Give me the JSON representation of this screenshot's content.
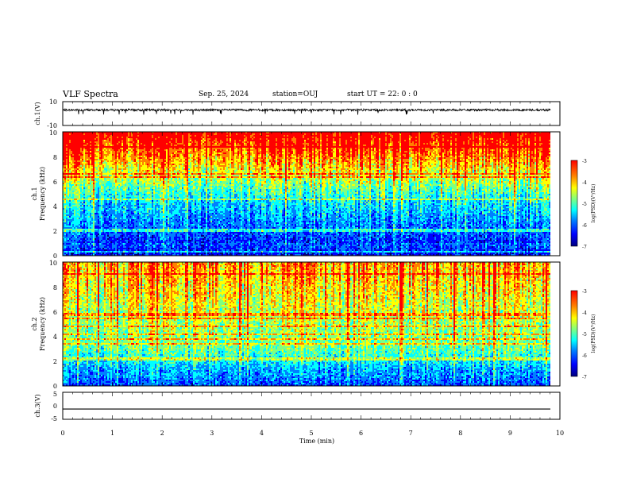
{
  "header": {
    "title": "VLF Spectra",
    "date": "Sep. 25, 2024",
    "station": "station=OUJ",
    "start": "start UT = 22: 0 : 0"
  },
  "colors": {
    "ch1_trace": "#000000",
    "ch3_trace": "#000000",
    "colormap": [
      "#00007f",
      "#0000ff",
      "#0080ff",
      "#00ffff",
      "#80ff80",
      "#ffff00",
      "#ff8000",
      "#ff0000"
    ]
  },
  "chart_data": [
    {
      "type": "line",
      "panel": "ch1-waveform",
      "ylabel": "ch.1(V)",
      "ylim": [
        -10,
        10
      ],
      "yticks": [
        "10",
        "-10"
      ],
      "xlim": [
        0,
        10
      ],
      "description_level": 3,
      "series": [
        {
          "values_summary": "noisy waveform around 3 V, spikes to about -1 V"
        }
      ]
    },
    {
      "type": "heatmap",
      "panel": "ch1-spectrogram",
      "ylabel": "ch.1\nFrequency (kHz)",
      "ylim": [
        0,
        10
      ],
      "yticks": [
        "0",
        "2",
        "4",
        "6",
        "8",
        "10"
      ],
      "xlim": [
        0,
        10
      ],
      "colorbar": {
        "label": "log(PSD)(V²/Hz)",
        "range": [
          -7,
          -3
        ],
        "ticks": [
          "-3",
          "-4",
          "-5",
          "-6",
          "-7"
        ]
      }
    },
    {
      "type": "heatmap",
      "panel": "ch2-spectrogram",
      "ylabel": "ch.2\nFrequency (kHz)",
      "ylim": [
        0,
        10
      ],
      "yticks": [
        "0",
        "2",
        "4",
        "6",
        "8",
        "10"
      ],
      "xlim": [
        0,
        10
      ],
      "colorbar": {
        "label": "log(PSD)(V²/Hz)",
        "range": [
          -7,
          -3
        ],
        "ticks": [
          "-3",
          "-4",
          "-5",
          "-6",
          "-7"
        ]
      }
    },
    {
      "type": "line",
      "panel": "ch3-waveform",
      "ylabel": "ch.3(V)",
      "ylim": [
        -5,
        5
      ],
      "yticks": [
        "5",
        "0",
        "-5"
      ],
      "xlim": [
        0,
        10
      ],
      "series": [
        {
          "values": [
            -1.2,
            -1.2
          ],
          "x": [
            0,
            9.8
          ]
        }
      ]
    },
    {
      "type": "axis",
      "xlabel": "Time (min)",
      "xticks": [
        "0",
        "1",
        "2",
        "3",
        "4",
        "5",
        "6",
        "7",
        "8",
        "9",
        "10"
      ]
    }
  ]
}
